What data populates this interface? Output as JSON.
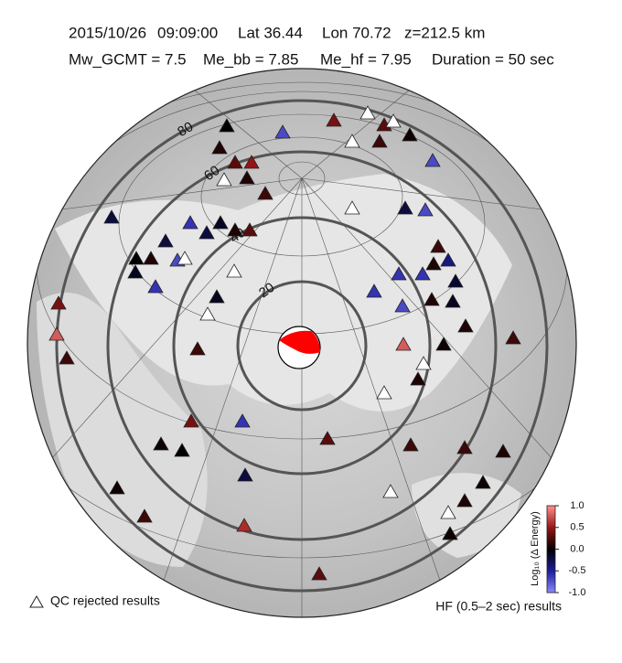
{
  "header": {
    "date": "2015/10/26",
    "time": "09:09:00",
    "lat": "Lat 36.44",
    "lon": "Lon 70.72",
    "depth": "z=212.5 km",
    "mw": "Mw_GCMT = 7.5",
    "me_bb": "Me_bb = 7.85",
    "me_hf": "Me_hf = 7.95",
    "duration": "Duration = 50 sec"
  },
  "distance_labels": [
    "20",
    "40",
    "60",
    "80"
  ],
  "stations": [
    0,
    -0.7,
    0.4,
    null,
    0.3,
    null,
    0.05,
    null,
    0.2,
    -0.7,
    0.1,
    0.3,
    0.5,
    null,
    0.1,
    0.2,
    null,
    -0.2,
    -0.7,
    -0.2,
    -0.6,
    -0.2,
    -0.1,
    0.1,
    0.3,
    -0.2,
    0.1,
    0,
    -0.7,
    null,
    -0.6,
    -0.1,
    null,
    -0.6,
    -0.6,
    0.1,
    0.2,
    -0.4,
    -0.15,
    -0.6,
    -0.7,
    0.1,
    -0.1,
    -0.1,
    null,
    0.4,
    0.8,
    0.2,
    0.8,
    0.1,
    0.05,
    0.2,
    0.2,
    null,
    0.1,
    null,
    0.4,
    -0.6,
    0.05,
    0,
    0.3,
    0.2,
    0.2,
    0.1,
    -0.2,
    0.05,
    0.05,
    null,
    0.1,
    0.2,
    null,
    0.6,
    0.05,
    0.3
  ],
  "colorbar": {
    "label": "Log₁₀ (Δ Energy)",
    "lim": [
      -1,
      1
    ],
    "ticks": [
      {
        "value": 1,
        "label": "1.0"
      },
      {
        "value": 0.5,
        "label": "0.5"
      },
      {
        "value": 0,
        "label": "0.0"
      },
      {
        "value": -0.5,
        "label": "-0.5"
      },
      {
        "value": -1,
        "label": "-1.0"
      }
    ]
  },
  "legend": {
    "rejected": "QC rejected results",
    "band": "HF (0.5–2 sec) results"
  }
}
